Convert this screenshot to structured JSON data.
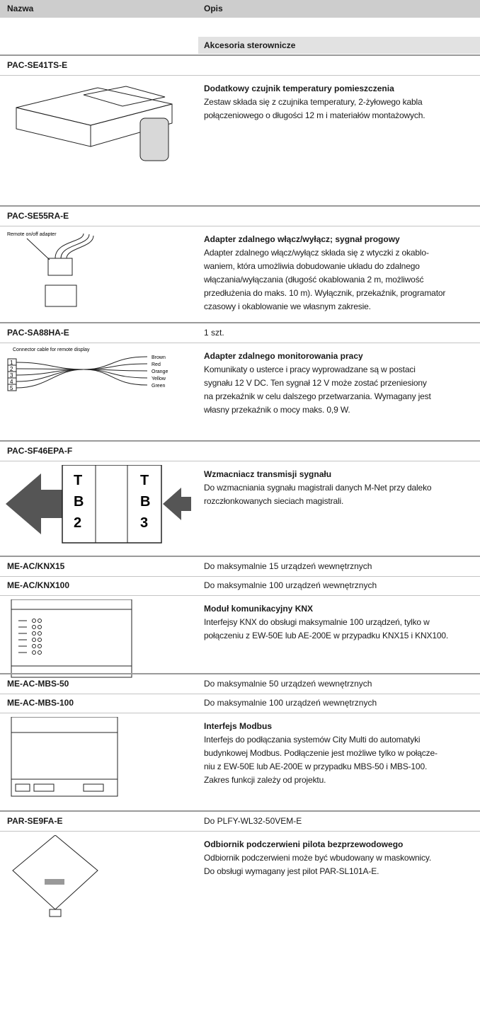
{
  "header": {
    "col1": "Nazwa",
    "col2": "Opis"
  },
  "category": "Akcesoria sterownicze",
  "sections": [
    {
      "items": [
        {
          "code": "PAC-SE41TS-E"
        }
      ],
      "title": "Dodatkowy czujnik temperatury pomieszczenia",
      "description": [
        "Zestaw składa się z czujnika temperatury, 2-żyłowego kabla",
        "połączeniowego o długości 12 m i materiałów montażowych."
      ]
    },
    {
      "items": [
        {
          "code": "PAC-SE55RA-E"
        }
      ],
      "title": "Adapter zdalnego włącz/wyłącz; sygnał progowy",
      "description": [
        "Adapter zdalnego włącz/wyłącz składa się z wtyczki z okablo-",
        "waniem, która umożliwia dobudowanie układu do zdalnego",
        "włączania/wyłączania (długość okablowania 2 m, możliwość",
        "przedłużenia do maks. 10 m). Wyłącznik, przekaźnik, programator",
        "czasowy i okablowanie we własnym zakresie."
      ],
      "image_labels": [
        "Remote on/off adapter"
      ]
    },
    {
      "items": [
        {
          "code": "PAC-SA88HA-E",
          "note": "1 szt."
        }
      ],
      "title": "Adapter zdalnego monitorowania pracy",
      "description": [
        "Komunikaty o usterce i pracy wyprowadzane są w postaci",
        "sygnału 12 V DC. Ten sygnał 12 V może zostać przeniesiony",
        "na przekaźnik w celu dalszego przetwarzania. Wymagany jest",
        "własny przekaźnik o mocy maks. 0,9 W."
      ],
      "image_labels": [
        "Connector cable for remote display",
        "1",
        "2",
        "3",
        "4",
        "5",
        "Brown",
        "Red",
        "Orange",
        "Yellow",
        "Green"
      ]
    },
    {
      "items": [
        {
          "code": "PAC-SF46EPA-F"
        }
      ],
      "title": "Wzmacniacz transmisji sygnału",
      "description": [
        "Do wzmacniania sygnału magistrali danych M-Net przy daleko",
        "rozczłonkowanych sieciach magistrali."
      ],
      "image_labels": [
        "T",
        "B",
        "2",
        "T",
        "B",
        "3"
      ]
    },
    {
      "items": [
        {
          "code": "ME-AC/KNX15",
          "note": "Do maksymalnie 15 urządzeń wewnętrznych"
        },
        {
          "code": "ME-AC/KNX100",
          "note": "Do maksymalnie 100 urządzeń wewnętrznych"
        }
      ],
      "title": "Moduł komunikacyjny KNX",
      "description": [
        "Interfejsy KNX do obsługi maksymalnie 100 urządzeń, tylko w",
        "połączeniu z EW-50E lub AE-200E w przypadku KNX15 i KNX100."
      ]
    },
    {
      "items": [
        {
          "code": "ME-AC-MBS-50",
          "note": "Do maksymalnie 50 urządzeń wewnętrznych"
        },
        {
          "code": "ME-AC-MBS-100",
          "note": "Do maksymalnie 100 urządzeń wewnętrznych"
        }
      ],
      "title": "Interfejs Modbus",
      "description": [
        "Interfejs do podłączania systemów City Multi do automatyki",
        "budynkowej Modbus. Podłączenie jest możliwe tylko w połącze-",
        "niu z EW-50E lub AE-200E w przypadku MBS-50 i MBS-100.",
        "Zakres funkcji zależy od projektu."
      ]
    },
    {
      "items": [
        {
          "code": "PAR-SE9FA-E",
          "note": "Do PLFY-WL32-50VEM-E"
        }
      ],
      "title": "Odbiornik podczerwieni pilota bezprzewodowego",
      "description": [
        "Odbiornik podczerwieni może być wbudowany w maskownicy.",
        "Do obsługi wymagany jest pilot PAR-SL101A-E."
      ]
    }
  ]
}
